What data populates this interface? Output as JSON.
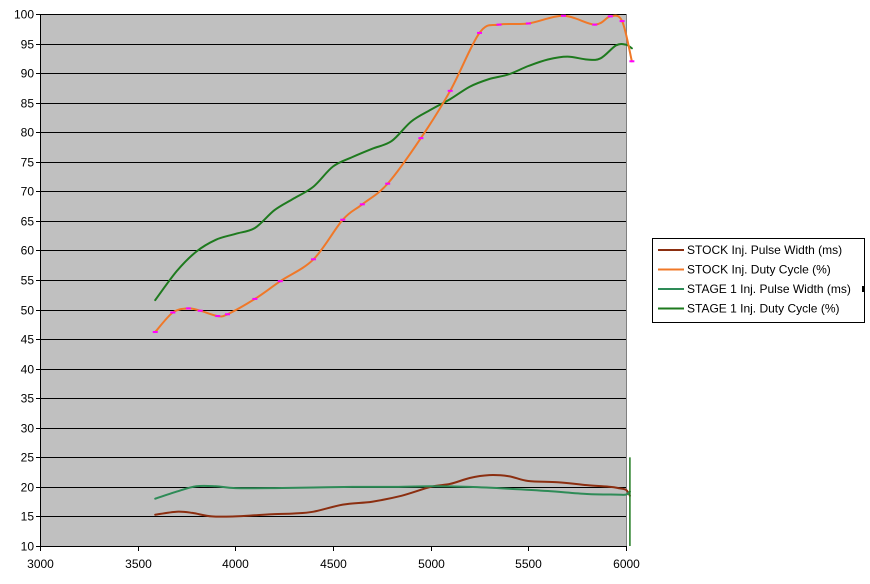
{
  "chart_data": {
    "type": "line",
    "title": "",
    "xlabel": "",
    "ylabel": "",
    "xlim": [
      3000,
      6000
    ],
    "ylim": [
      10,
      100
    ],
    "x_ticks": [
      3000,
      3500,
      4000,
      4500,
      5000,
      5500,
      6000
    ],
    "y_ticks": [
      10,
      15,
      20,
      25,
      30,
      35,
      40,
      45,
      50,
      55,
      60,
      65,
      70,
      75,
      80,
      85,
      90,
      95,
      100
    ],
    "grid": "horizontal",
    "plot_background": "#c0c0c0",
    "legend_position": "right",
    "series": [
      {
        "name": "STOCK Inj. Pulse Width (ms)",
        "color": "#8b2e10",
        "marker_color": "",
        "points": [
          [
            3590,
            15.3
          ],
          [
            3700,
            15.8
          ],
          [
            3780,
            15.6
          ],
          [
            3880,
            15.0
          ],
          [
            4000,
            15.0
          ],
          [
            4100,
            15.2
          ],
          [
            4200,
            15.4
          ],
          [
            4300,
            15.5
          ],
          [
            4400,
            15.8
          ],
          [
            4550,
            17.0
          ],
          [
            4700,
            17.5
          ],
          [
            4850,
            18.5
          ],
          [
            5000,
            20.0
          ],
          [
            5100,
            20.5
          ],
          [
            5200,
            21.5
          ],
          [
            5300,
            22.0
          ],
          [
            5400,
            21.8
          ],
          [
            5500,
            21.0
          ],
          [
            5650,
            20.8
          ],
          [
            5800,
            20.3
          ],
          [
            5920,
            20.0
          ],
          [
            5960,
            19.8
          ],
          [
            6000,
            19.5
          ],
          [
            6020,
            18.5
          ]
        ]
      },
      {
        "name": "STOCK Inj. Duty Cycle (%)",
        "color": "#f07828",
        "marker_color": "#ff00ff",
        "points": [
          [
            3590,
            46.2
          ],
          [
            3680,
            49.5
          ],
          [
            3760,
            50.2
          ],
          [
            3820,
            49.8
          ],
          [
            3910,
            48.9
          ],
          [
            3960,
            49.2
          ],
          [
            4100,
            51.8
          ],
          [
            4230,
            54.8
          ],
          [
            4400,
            58.5
          ],
          [
            4550,
            65.2
          ],
          [
            4650,
            67.8
          ],
          [
            4780,
            71.3
          ],
          [
            4950,
            79.0
          ],
          [
            5100,
            87.0
          ],
          [
            5250,
            96.8
          ],
          [
            5350,
            98.2
          ],
          [
            5500,
            98.4
          ],
          [
            5680,
            99.7
          ],
          [
            5840,
            98.2
          ],
          [
            5920,
            99.6
          ],
          [
            5980,
            98.8
          ],
          [
            6030,
            92.0
          ]
        ]
      },
      {
        "name": "STAGE 1 Inj. Pulse Width (ms)",
        "color": "#2e8b57",
        "marker_color": "",
        "points": [
          [
            3590,
            18.0
          ],
          [
            3700,
            19.2
          ],
          [
            3800,
            20.1
          ],
          [
            3900,
            20.1
          ],
          [
            4000,
            19.8
          ],
          [
            4200,
            19.8
          ],
          [
            4400,
            19.9
          ],
          [
            4600,
            20.0
          ],
          [
            4800,
            20.0
          ],
          [
            5000,
            20.1
          ],
          [
            5200,
            20.0
          ],
          [
            5400,
            19.7
          ],
          [
            5600,
            19.3
          ],
          [
            5800,
            18.8
          ],
          [
            5950,
            18.7
          ],
          [
            6000,
            18.7
          ],
          [
            6020,
            19.2
          ]
        ]
      },
      {
        "name": "STAGE 1 Inj. Duty Cycle (%)",
        "color": "#1e7a1e",
        "marker_color": "",
        "points": [
          [
            3590,
            51.6
          ],
          [
            3700,
            56.5
          ],
          [
            3800,
            59.8
          ],
          [
            3900,
            61.8
          ],
          [
            4000,
            62.8
          ],
          [
            4100,
            63.8
          ],
          [
            4200,
            66.8
          ],
          [
            4300,
            68.8
          ],
          [
            4400,
            70.8
          ],
          [
            4500,
            74.2
          ],
          [
            4600,
            75.8
          ],
          [
            4700,
            77.2
          ],
          [
            4800,
            78.5
          ],
          [
            4900,
            81.8
          ],
          [
            5000,
            83.8
          ],
          [
            5100,
            85.6
          ],
          [
            5200,
            87.7
          ],
          [
            5300,
            89.0
          ],
          [
            5400,
            89.8
          ],
          [
            5500,
            91.2
          ],
          [
            5600,
            92.3
          ],
          [
            5700,
            92.8
          ],
          [
            5800,
            92.3
          ],
          [
            5870,
            92.5
          ],
          [
            5950,
            94.7
          ],
          [
            6000,
            94.8
          ],
          [
            6030,
            94.2
          ]
        ]
      }
    ]
  }
}
